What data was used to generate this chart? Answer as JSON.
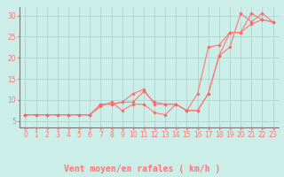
{
  "title": "",
  "xlabel": "Vent moyen/en rafales ( km/h )",
  "bg_color": "#cceee8",
  "grid_color": "#aacccc",
  "line_color": "#ff7777",
  "marker_color": "#ff6666",
  "xlim": [
    -0.5,
    23.5
  ],
  "ylim": [
    3.5,
    32
  ],
  "yticks": [
    5,
    10,
    15,
    20,
    25,
    30
  ],
  "xticks": [
    0,
    1,
    2,
    3,
    4,
    5,
    6,
    7,
    8,
    9,
    10,
    11,
    12,
    13,
    14,
    15,
    16,
    17,
    18,
    19,
    20,
    21,
    22,
    23
  ],
  "series": [
    {
      "x": [
        0,
        1,
        2,
        3,
        4,
        5,
        6,
        7,
        8,
        9,
        10,
        11,
        12,
        13,
        14,
        15,
        16,
        17,
        18,
        19,
        20,
        21,
        22,
        23
      ],
      "y": [
        6.5,
        6.5,
        6.5,
        6.5,
        6.5,
        6.5,
        6.5,
        9.0,
        9.0,
        9.5,
        11.5,
        12.5,
        9.0,
        9.0,
        9.0,
        7.5,
        7.5,
        11.5,
        20.5,
        26.0,
        26.0,
        30.5,
        29.0,
        28.5
      ]
    },
    {
      "x": [
        0,
        1,
        2,
        3,
        4,
        5,
        6,
        7,
        8,
        9,
        10,
        11,
        12,
        13,
        14,
        15,
        16,
        17,
        18,
        19,
        20,
        21,
        22,
        23
      ],
      "y": [
        6.5,
        6.5,
        6.5,
        6.5,
        6.5,
        6.5,
        6.5,
        8.5,
        9.5,
        7.5,
        9.0,
        9.0,
        7.0,
        6.5,
        9.0,
        7.5,
        7.5,
        11.5,
        20.5,
        22.5,
        30.5,
        28.5,
        30.5,
        28.5
      ]
    },
    {
      "x": [
        0,
        1,
        2,
        3,
        4,
        5,
        6,
        7,
        8,
        9,
        10,
        11,
        12,
        13,
        14,
        15,
        16,
        17,
        18,
        19,
        20,
        21,
        22,
        23
      ],
      "y": [
        6.5,
        6.5,
        6.5,
        6.5,
        6.5,
        6.5,
        6.5,
        9.0,
        9.0,
        9.5,
        9.5,
        12.0,
        9.5,
        9.0,
        9.0,
        7.5,
        11.5,
        22.5,
        23.0,
        26.0,
        26.0,
        28.0,
        29.0,
        28.5
      ]
    }
  ],
  "xlabel_fontsize": 7,
  "tick_fontsize": 5.5,
  "ylabel_fontsize": 6
}
